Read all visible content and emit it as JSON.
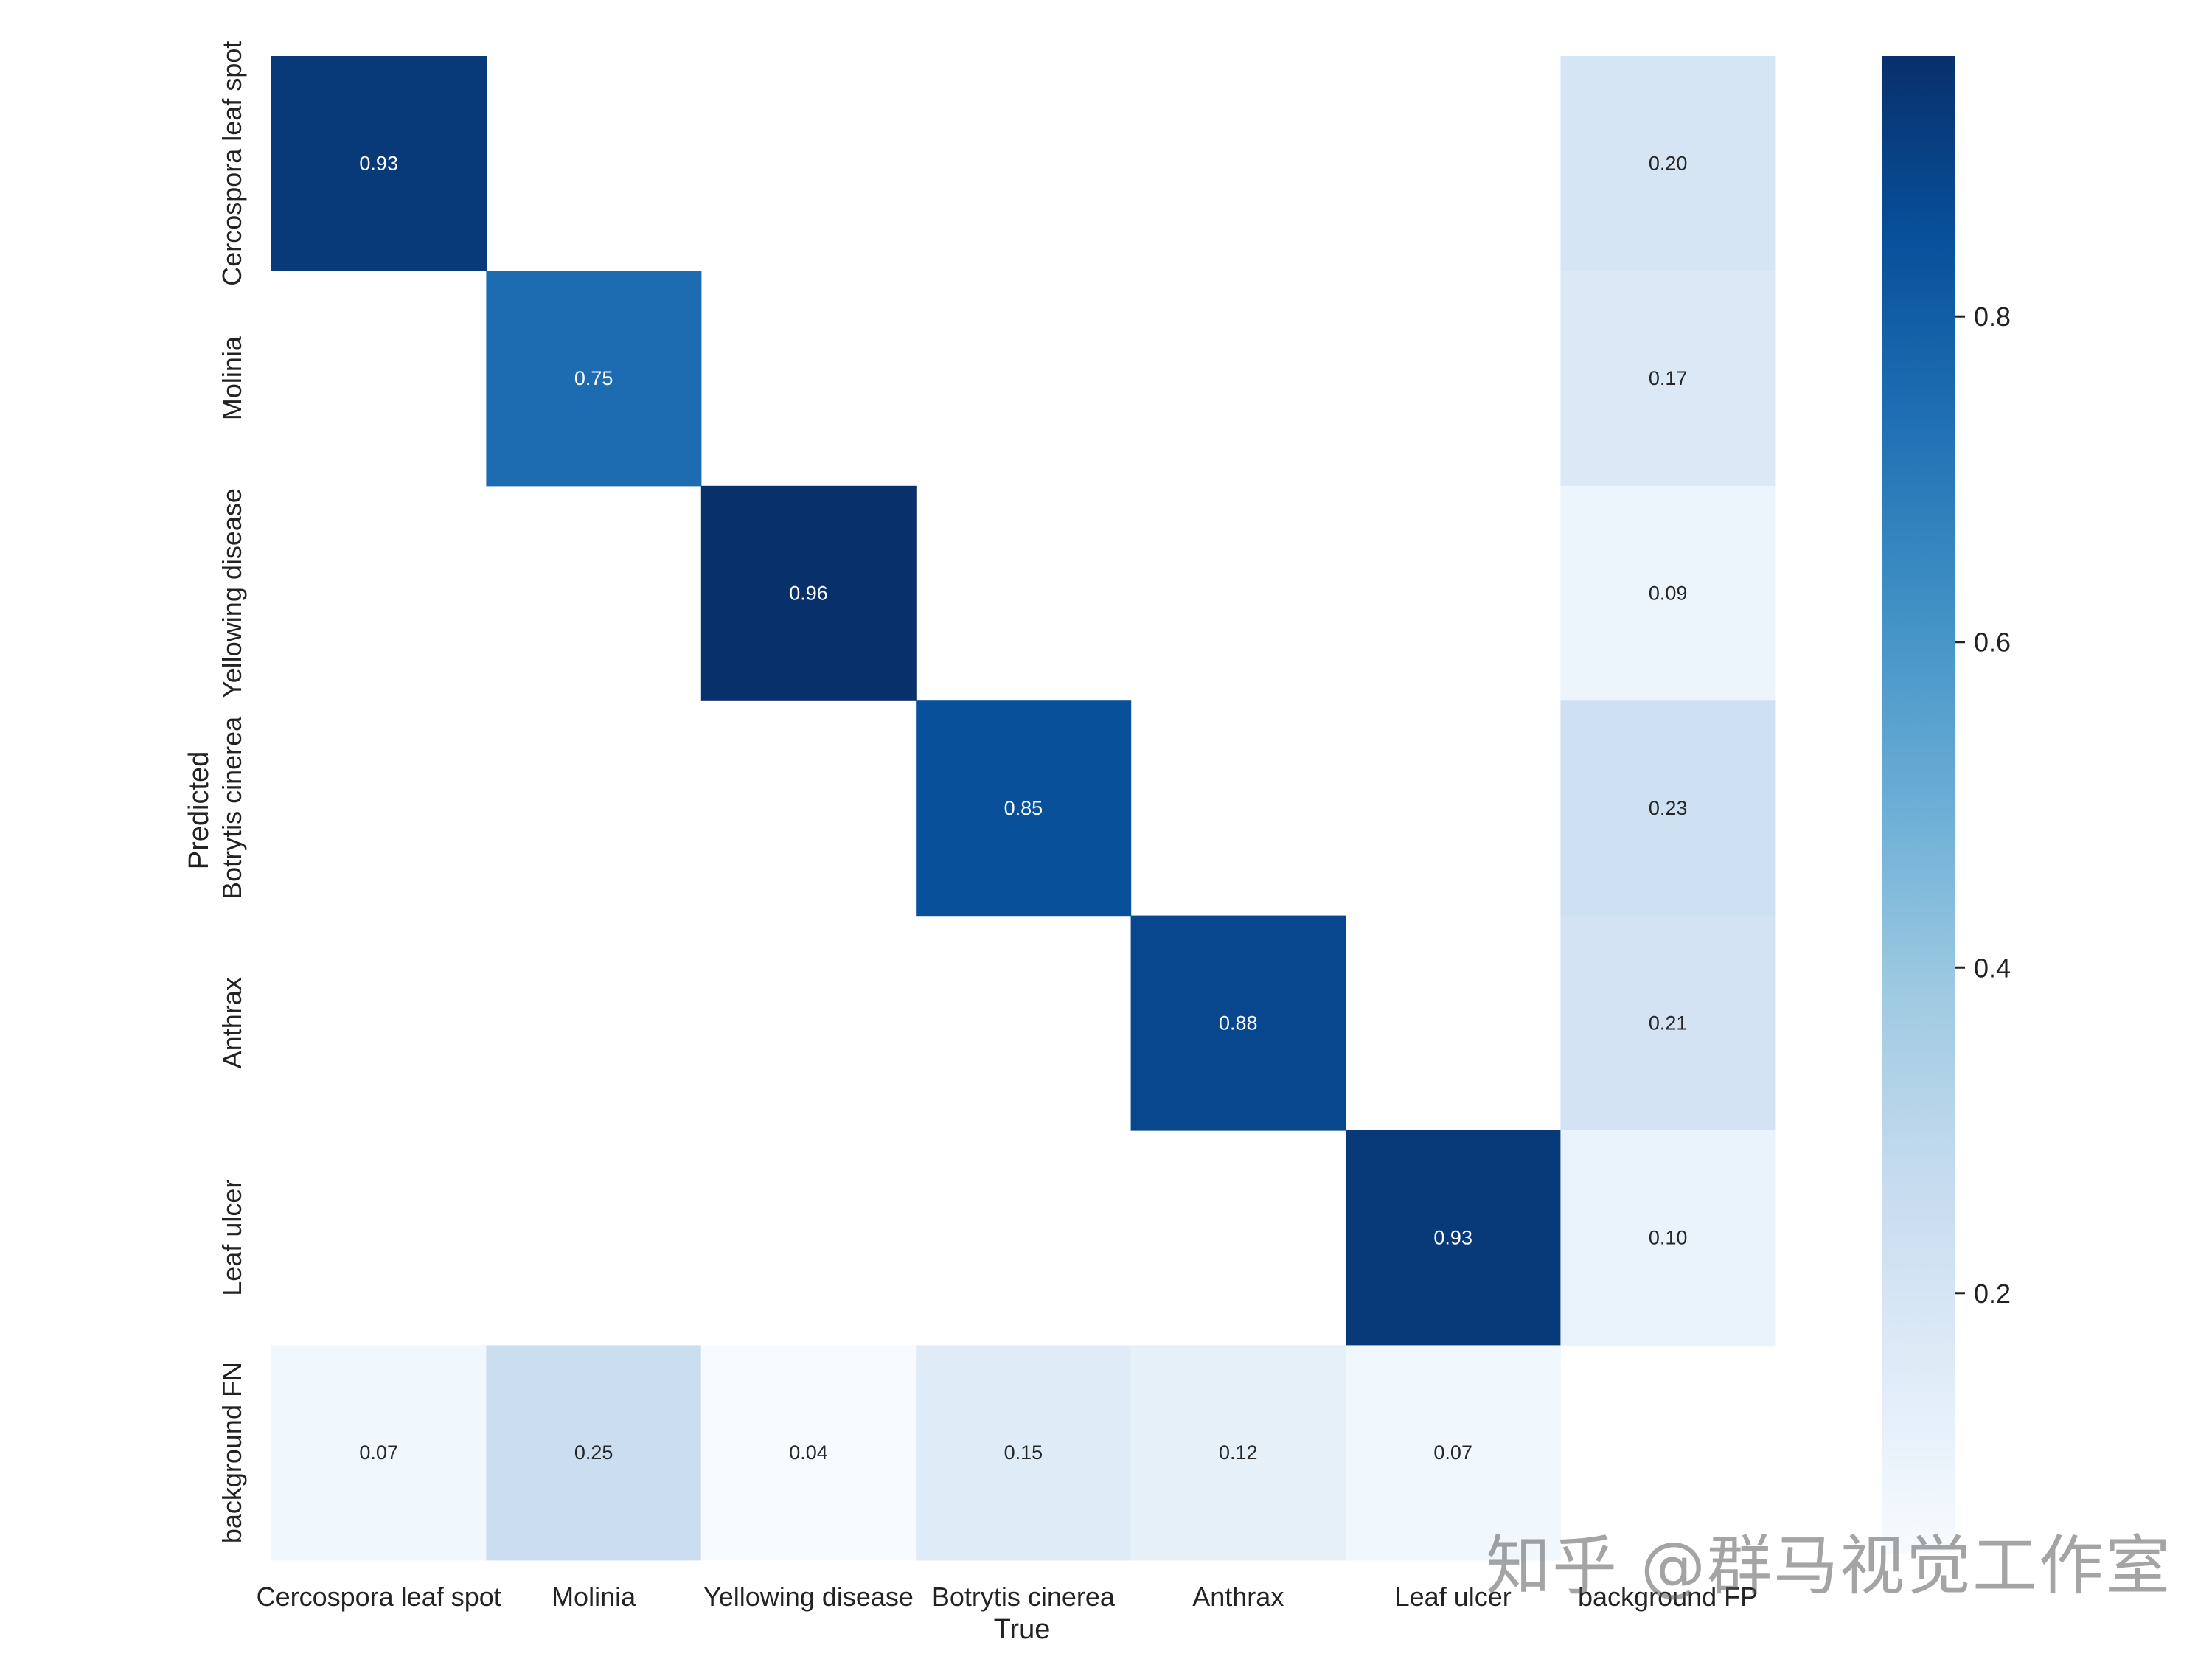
{
  "chart_data": {
    "type": "heatmap",
    "xlabel": "True",
    "ylabel": "Predicted",
    "x_categories": [
      "Cercospora leaf spot",
      "Molinia",
      "Yellowing disease",
      "Botrytis cinerea",
      "Anthrax",
      "Leaf ulcer",
      "background FP"
    ],
    "y_categories": [
      "Cercospora leaf spot",
      "Molinia",
      "Yellowing disease",
      "Botrytis cinerea",
      "Anthrax",
      "Leaf ulcer",
      "background FN"
    ],
    "matrix": [
      [
        0.93,
        null,
        null,
        null,
        null,
        null,
        0.2
      ],
      [
        null,
        0.75,
        null,
        null,
        null,
        null,
        0.17
      ],
      [
        null,
        null,
        0.96,
        null,
        null,
        null,
        0.09
      ],
      [
        null,
        null,
        null,
        0.85,
        null,
        null,
        0.23
      ],
      [
        null,
        null,
        null,
        null,
        0.88,
        null,
        0.21
      ],
      [
        null,
        null,
        null,
        null,
        null,
        0.93,
        0.1
      ],
      [
        0.07,
        0.25,
        0.04,
        0.15,
        0.12,
        0.07,
        null
      ]
    ],
    "colormap": "Blues",
    "vmin": 0.04,
    "vmax": 0.96,
    "colorbar_ticks": [
      0.2,
      0.4,
      0.6,
      0.8
    ],
    "colorbar_tick_labels": [
      "0.2",
      "0.4",
      "0.6",
      "0.8"
    ],
    "value_format": "0.00",
    "grid": false
  },
  "watermark": "知乎 @群马视觉工作室"
}
